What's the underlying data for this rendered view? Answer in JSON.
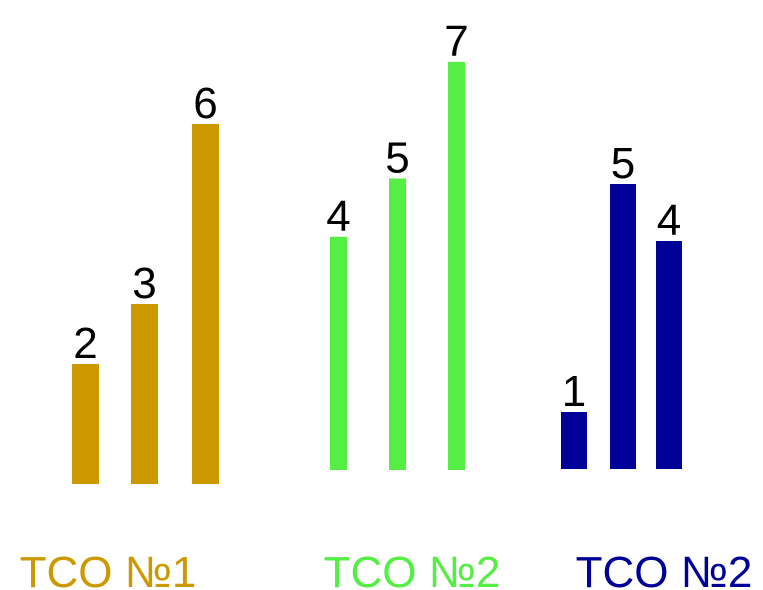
{
  "chart_data": {
    "type": "bar",
    "title": "",
    "xlabel": "",
    "ylabel": "",
    "groups": [
      {
        "name": "TCO №1",
        "color": "#CC9900",
        "values": [
          2,
          3,
          6
        ]
      },
      {
        "name": "TCO №2",
        "color": "#55EE44",
        "values": [
          4,
          5,
          7
        ]
      },
      {
        "name": "TCO №2",
        "color": "#000099",
        "values": [
          1,
          5,
          4
        ]
      }
    ],
    "data_labels": true,
    "axes_visible": false,
    "grid": false
  }
}
